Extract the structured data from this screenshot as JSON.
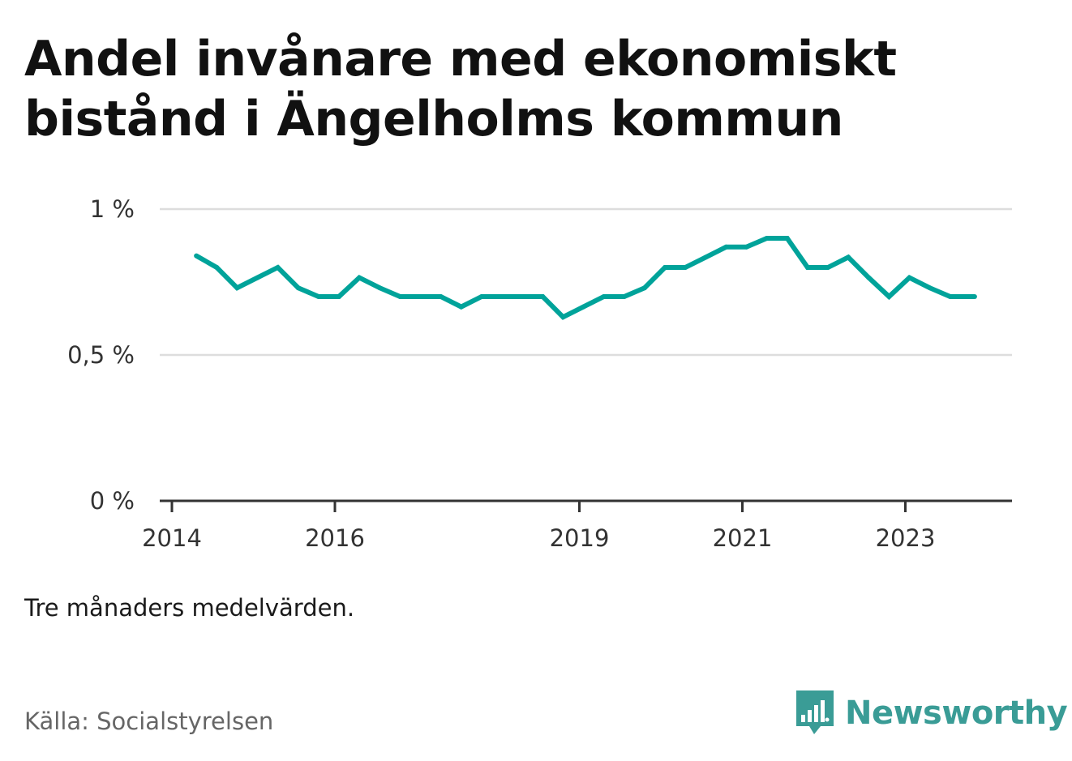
{
  "title": "Andel invånare med ekonomiskt bistånd i Ängelholms kommun",
  "note": "Tre månaders medelvärden.",
  "source": "Källa: Socialstyrelsen",
  "brand": {
    "name": "Newsworthy",
    "logo_icon": "bar-chart-speech-bubble-icon",
    "color": "#3a9c96"
  },
  "chart_data": {
    "type": "line",
    "title": "Andel invånare med ekonomiskt bistånd i Ängelholms kommun",
    "xlabel": "",
    "ylabel": "",
    "ylim": [
      0,
      1
    ],
    "xlim": [
      2014,
      2024.35
    ],
    "y_ticks": [
      0,
      0.5,
      1
    ],
    "y_tick_labels": [
      "0 %",
      "0,5 %",
      "1 %"
    ],
    "x_ticks": [
      2014,
      2016,
      2019,
      2021,
      2023
    ],
    "x_tick_labels": [
      "2014",
      "2016",
      "2019",
      "2021",
      "2023"
    ],
    "grid": "horizontal",
    "line_color": "#00a39a",
    "series": [
      {
        "name": "",
        "x": [
          2014.3,
          2014.55,
          2014.8,
          2015.05,
          2015.3,
          2015.55,
          2015.8,
          2016.05,
          2016.3,
          2016.55,
          2016.8,
          2017.05,
          2017.3,
          2017.55,
          2017.8,
          2018.05,
          2018.3,
          2018.55,
          2018.8,
          2019.05,
          2019.3,
          2019.55,
          2019.8,
          2020.05,
          2020.3,
          2020.55,
          2020.8,
          2021.05,
          2021.3,
          2021.55,
          2021.8,
          2022.05,
          2022.3,
          2022.55,
          2022.8,
          2023.05,
          2023.3,
          2023.55,
          2023.85
        ],
        "values": [
          0.84,
          0.8,
          0.73,
          0.765,
          0.8,
          0.73,
          0.7,
          0.7,
          0.765,
          0.73,
          0.7,
          0.7,
          0.7,
          0.665,
          0.7,
          0.7,
          0.7,
          0.7,
          0.63,
          0.665,
          0.7,
          0.7,
          0.73,
          0.8,
          0.8,
          0.835,
          0.87,
          0.87,
          0.9,
          0.9,
          0.8,
          0.8,
          0.835,
          0.765,
          0.7,
          0.765,
          0.73,
          0.7,
          0.7
        ]
      }
    ]
  }
}
